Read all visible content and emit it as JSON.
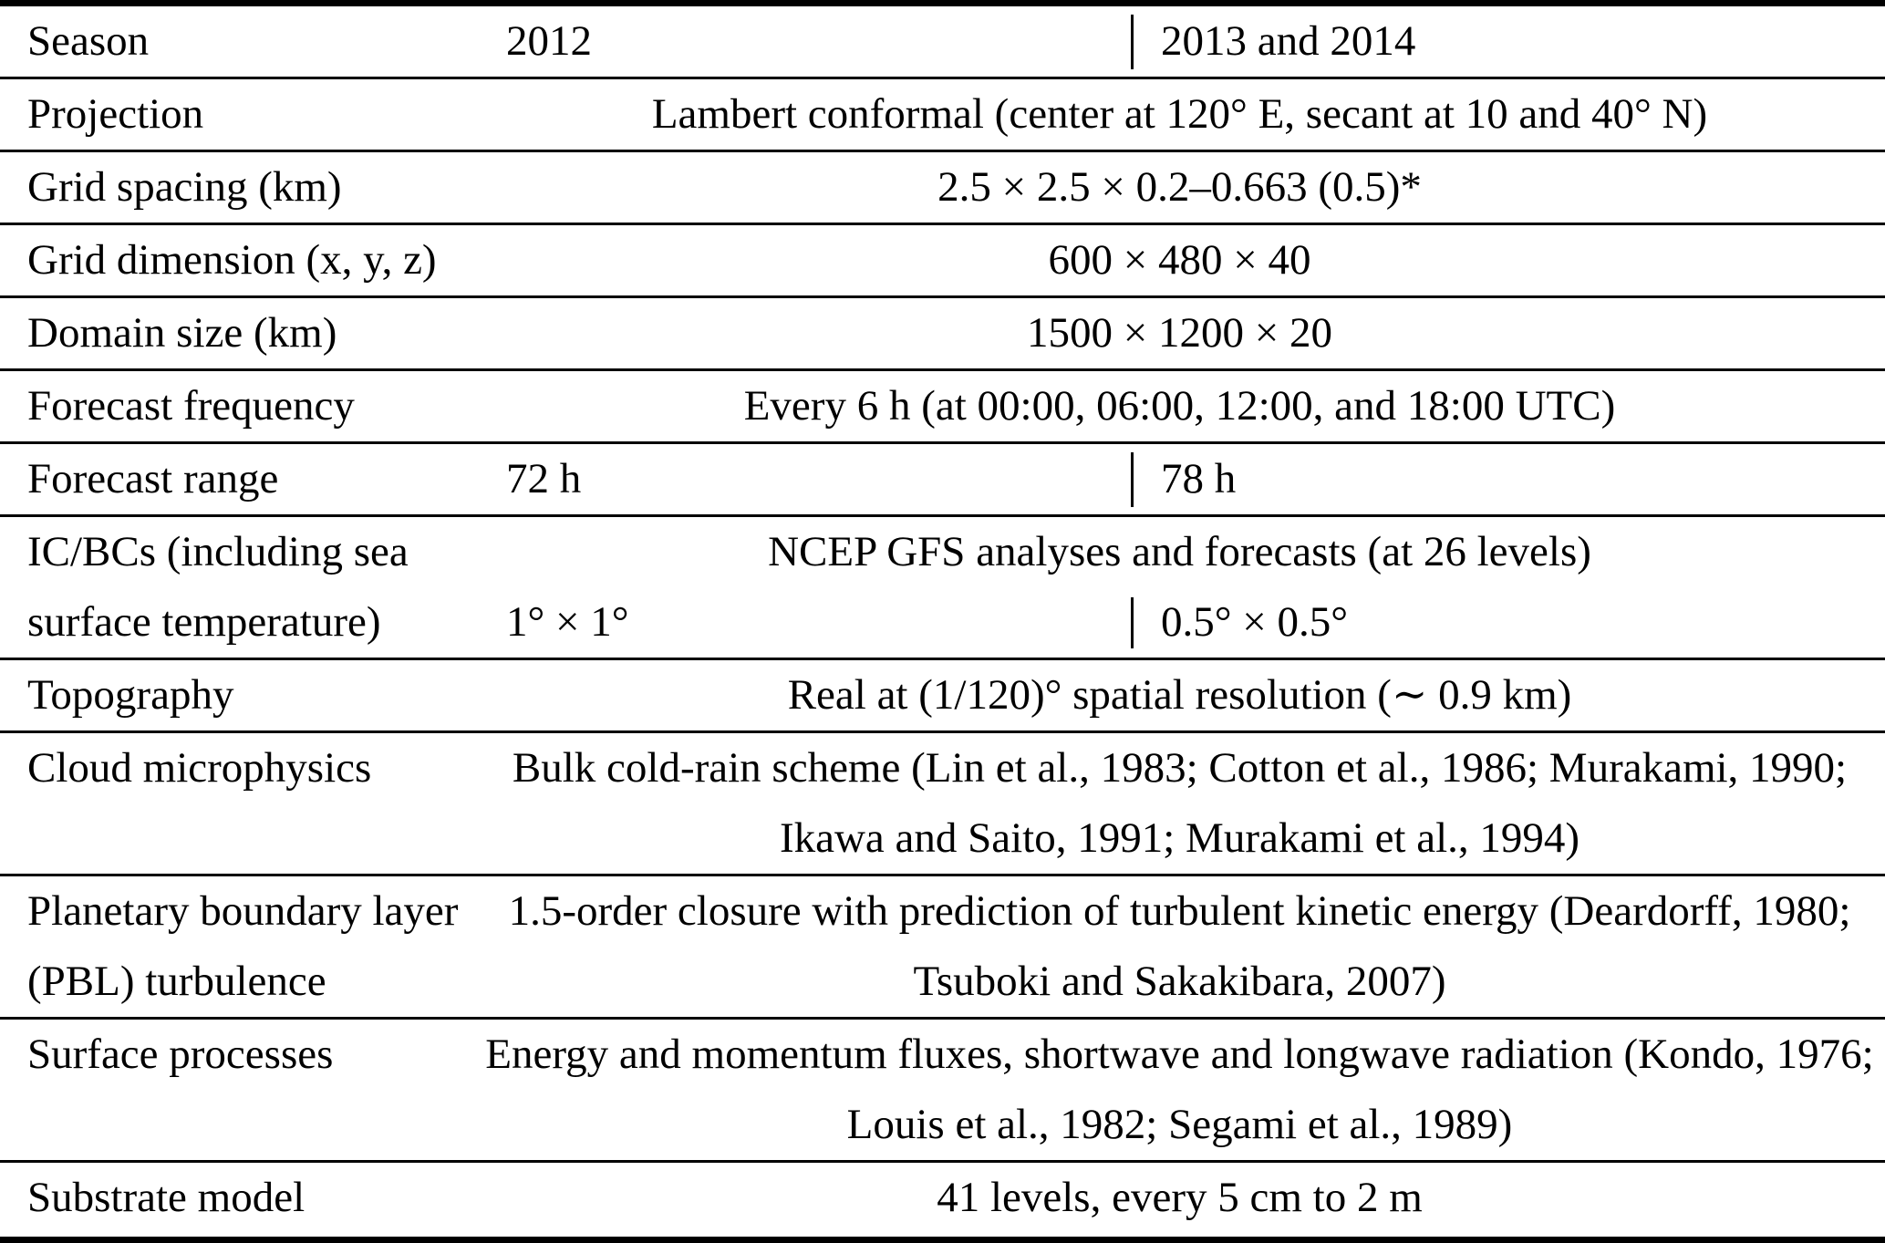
{
  "table": {
    "rows": [
      {
        "type": "cols",
        "label_lines": [
          "Season"
        ],
        "col_2012": "2012",
        "col_2013_2014": "2013 and 2014"
      },
      {
        "type": "span",
        "label_lines": [
          "Projection"
        ],
        "value_lines": [
          "Lambert conformal (center at 120° E, secant at 10 and 40° N)"
        ]
      },
      {
        "type": "span",
        "label_lines": [
          "Grid spacing (km)"
        ],
        "value_lines": [
          "2.5 × 2.5 × 0.2–0.663 (0.5)*"
        ]
      },
      {
        "type": "span",
        "label_lines": [
          "Grid dimension (x, y, z)"
        ],
        "value_lines": [
          "600 × 480 × 40"
        ]
      },
      {
        "type": "span",
        "label_lines": [
          "Domain size (km)"
        ],
        "value_lines": [
          "1500 × 1200 × 20"
        ]
      },
      {
        "type": "span",
        "label_lines": [
          "Forecast frequency"
        ],
        "value_lines": [
          "Every 6 h (at 00:00, 06:00, 12:00, and 18:00 UTC)"
        ]
      },
      {
        "type": "cols",
        "label_lines": [
          "Forecast range"
        ],
        "col_2012": "72 h",
        "col_2013_2014": "78 h"
      },
      {
        "type": "span-cols",
        "label_lines": [
          "IC/BCs (including sea",
          "surface temperature)"
        ],
        "span_line": "NCEP GFS analyses and forecasts (at 26 levels)",
        "col_2012": "1° × 1°",
        "col_2013_2014": "0.5° × 0.5°"
      },
      {
        "type": "span",
        "label_lines": [
          "Topography"
        ],
        "value_lines": [
          "Real at (1/120)° spatial resolution (∼ 0.9 km)"
        ]
      },
      {
        "type": "span",
        "label_lines": [
          "Cloud microphysics"
        ],
        "value_lines": [
          "Bulk cold-rain scheme (Lin et al., 1983; Cotton et al., 1986; Murakami, 1990;",
          "Ikawa and Saito, 1991; Murakami et al., 1994)"
        ]
      },
      {
        "type": "span",
        "label_lines": [
          "Planetary boundary layer",
          "(PBL) turbulence"
        ],
        "value_lines": [
          "1.5-order closure with prediction of turbulent kinetic energy (Deardorff, 1980;",
          "Tsuboki and Sakakibara, 2007)"
        ]
      },
      {
        "type": "span",
        "label_lines": [
          "Surface processes"
        ],
        "value_lines": [
          "Energy and momentum fluxes, shortwave and longwave radiation (Kondo, 1976;",
          "Louis et al., 1982; Segami et al., 1989)"
        ]
      },
      {
        "type": "span",
        "label_lines": [
          "Substrate model"
        ],
        "value_lines": [
          "41 levels, every 5 cm to 2 m"
        ]
      }
    ]
  }
}
